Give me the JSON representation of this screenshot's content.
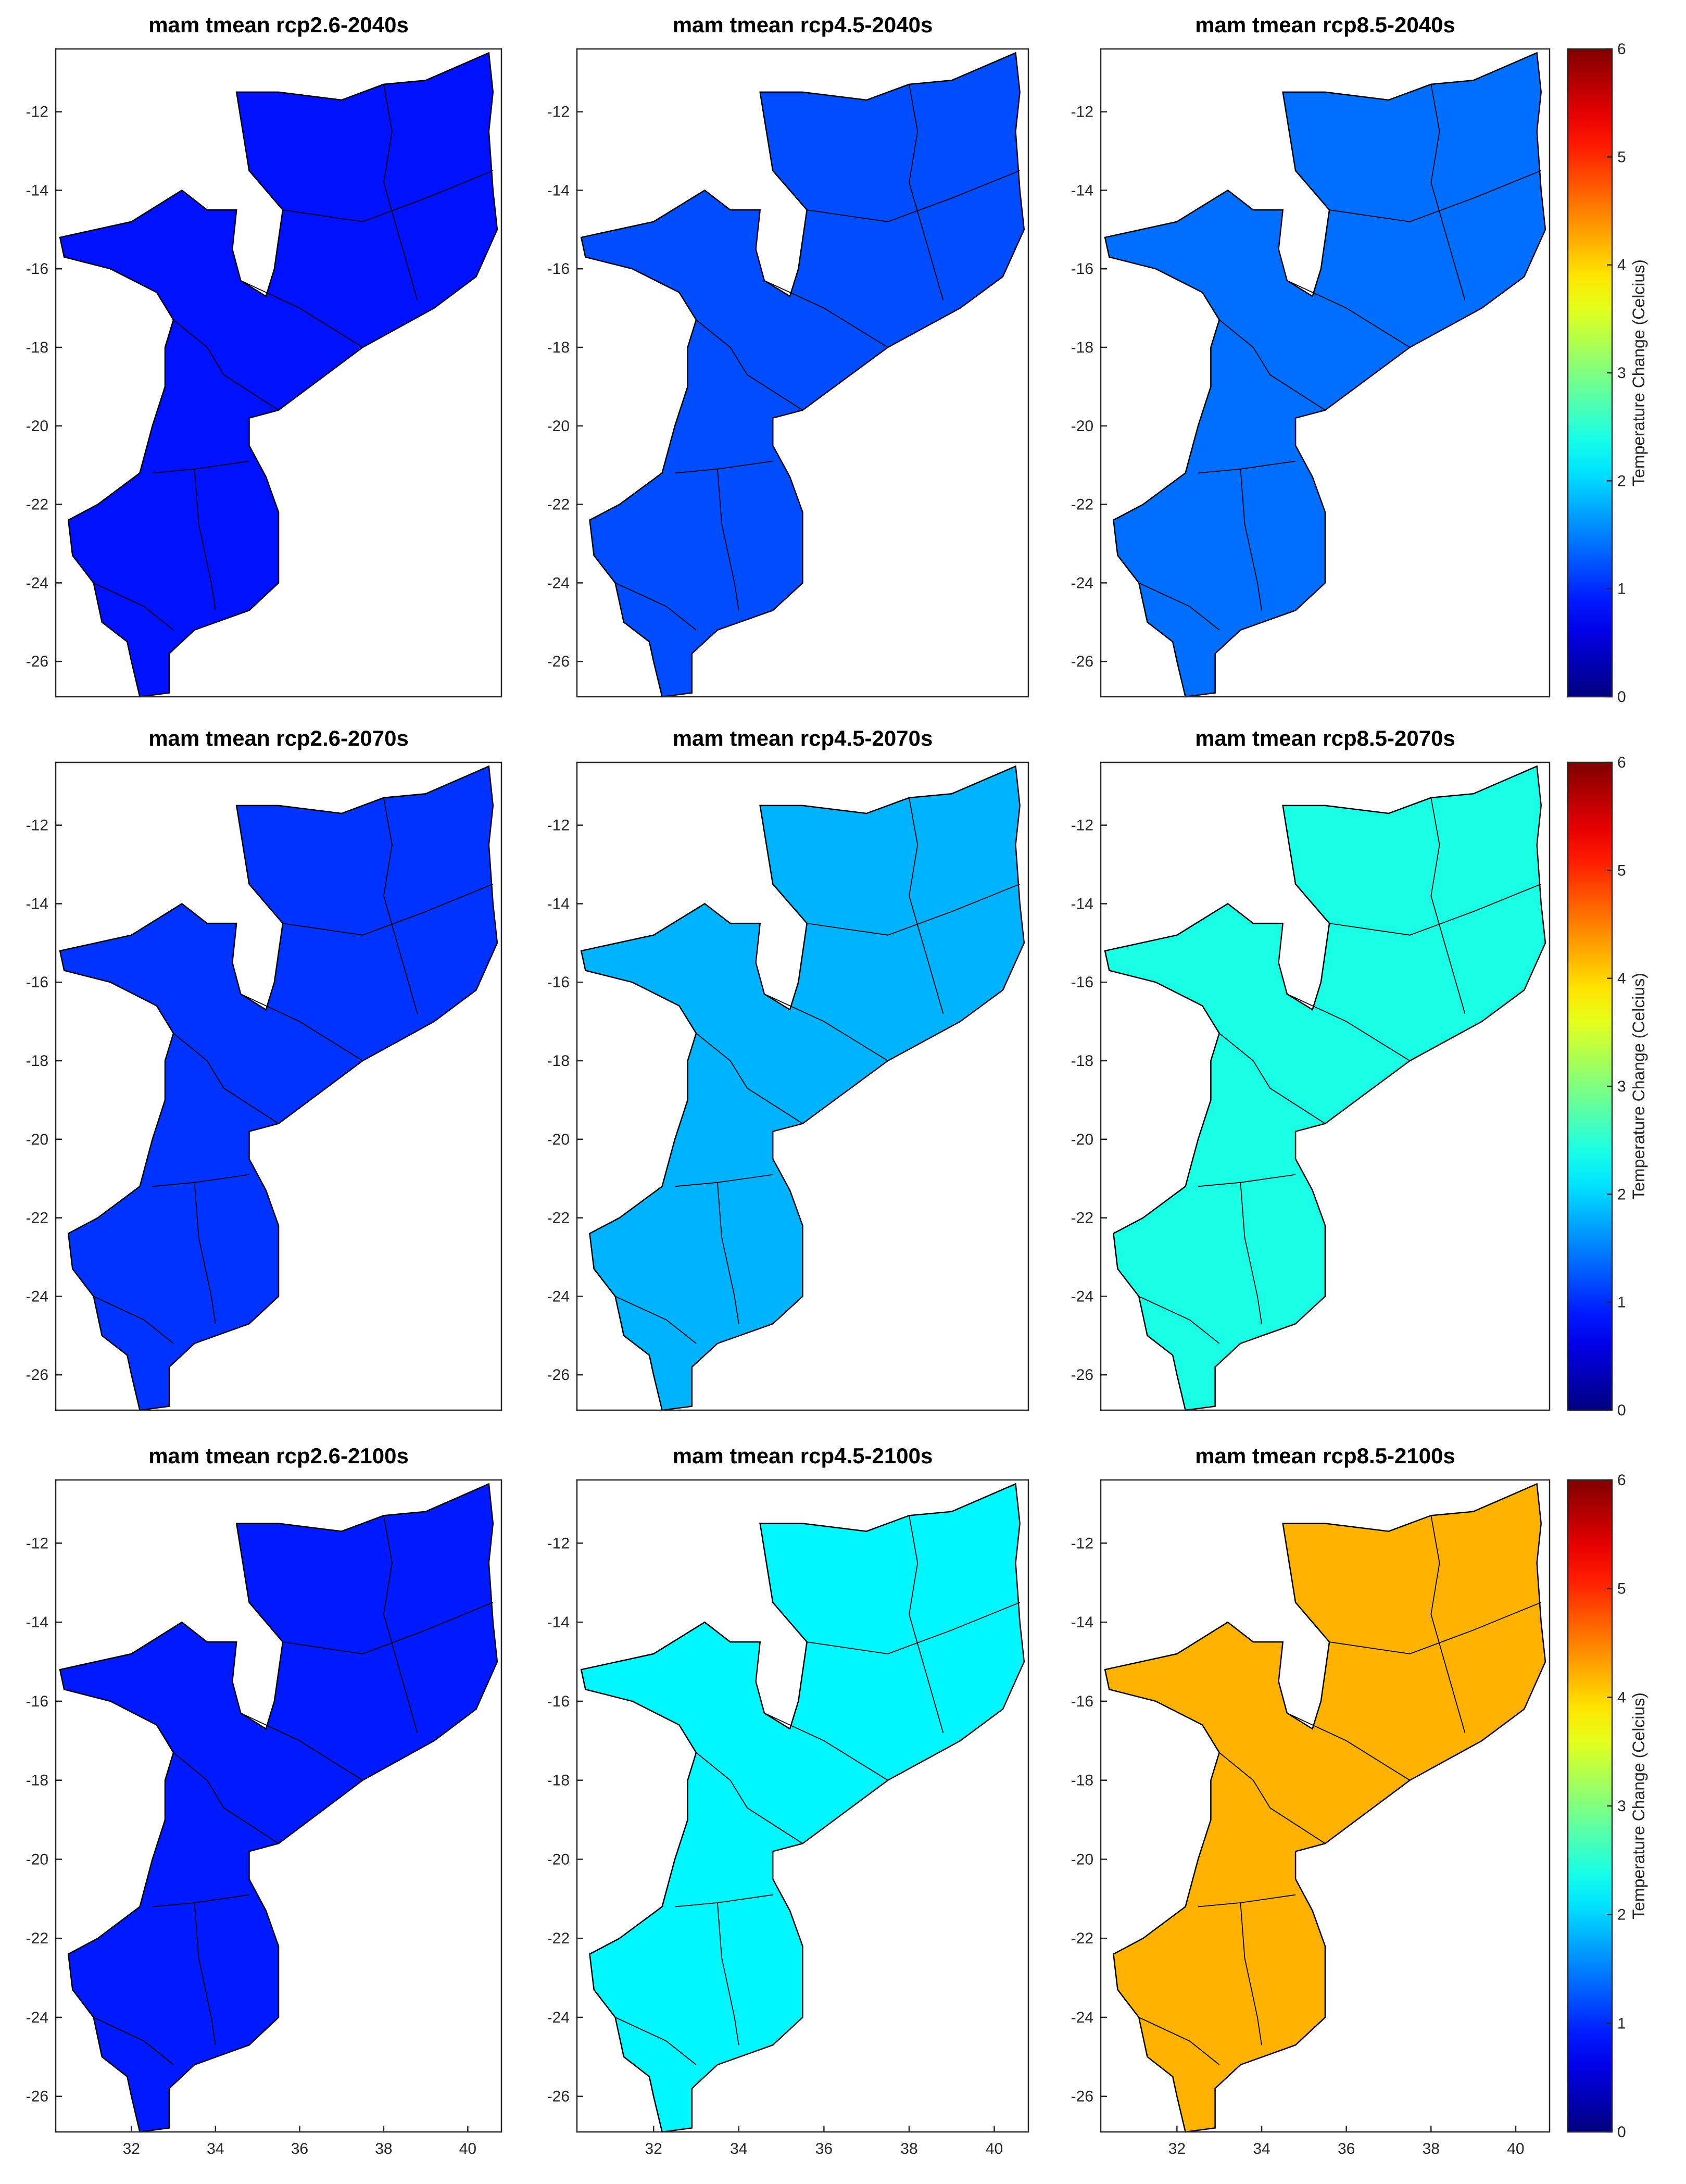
{
  "chart_data": [
    {
      "type": "map",
      "title": "mam tmean rcp2.6-2040s",
      "value": 0.85,
      "colormap": "jet",
      "xlim": [
        30.2,
        40.8
      ],
      "ylim": [
        -26.9,
        -10.4
      ],
      "yticks": [
        -12,
        -14,
        -16,
        -18,
        -20,
        -22,
        -24,
        -26
      ]
    },
    {
      "type": "map",
      "title": "mam tmean rcp4.5-2040s",
      "value": 1.2,
      "colormap": "jet",
      "xlim": [
        30.2,
        40.8
      ],
      "ylim": [
        -26.9,
        -10.4
      ],
      "yticks": [
        -12,
        -14,
        -16,
        -18,
        -20,
        -22,
        -24,
        -26
      ]
    },
    {
      "type": "map",
      "title": "mam tmean rcp8.5-2040s",
      "value": 1.4,
      "colormap": "jet",
      "xlim": [
        30.2,
        40.8
      ],
      "ylim": [
        -26.9,
        -10.4
      ],
      "yticks": [
        -12,
        -14,
        -16,
        -18,
        -20,
        -22,
        -24,
        -26
      ],
      "colorbar": {
        "label": "Temperature Change (Celcius)",
        "lim": [
          0,
          6
        ],
        "ticks": [
          0,
          1,
          2,
          3,
          4,
          5,
          6
        ]
      }
    },
    {
      "type": "map",
      "title": "mam tmean rcp2.6-2070s",
      "value": 1.05,
      "colormap": "jet",
      "xlim": [
        30.2,
        40.8
      ],
      "ylim": [
        -26.9,
        -10.4
      ],
      "yticks": [
        -12,
        -14,
        -16,
        -18,
        -20,
        -22,
        -24,
        -26
      ]
    },
    {
      "type": "map",
      "title": "mam tmean rcp4.5-2070s",
      "value": 1.8,
      "colormap": "jet",
      "xlim": [
        30.2,
        40.8
      ],
      "ylim": [
        -26.9,
        -10.4
      ],
      "yticks": [
        -12,
        -14,
        -16,
        -18,
        -20,
        -22,
        -24,
        -26
      ]
    },
    {
      "type": "map",
      "title": "mam tmean rcp8.5-2070s",
      "value": 2.4,
      "colormap": "jet",
      "xlim": [
        30.2,
        40.8
      ],
      "ylim": [
        -26.9,
        -10.4
      ],
      "yticks": [
        -12,
        -14,
        -16,
        -18,
        -20,
        -22,
        -24,
        -26
      ],
      "colorbar": {
        "label": "Temperature Change (Celcius)",
        "lim": [
          0,
          6
        ],
        "ticks": [
          0,
          1,
          2,
          3,
          4,
          5,
          6
        ]
      }
    },
    {
      "type": "map",
      "title": "mam tmean rcp2.6-2100s",
      "value": 0.9,
      "colormap": "jet",
      "xlim": [
        30.2,
        40.8
      ],
      "ylim": [
        -26.9,
        -10.4
      ],
      "yticks": [
        -12,
        -14,
        -16,
        -18,
        -20,
        -22,
        -24,
        -26
      ],
      "xticks": [
        32,
        34,
        36,
        38,
        40
      ]
    },
    {
      "type": "map",
      "title": "mam tmean rcp4.5-2100s",
      "value": 2.2,
      "colormap": "jet",
      "xlim": [
        30.2,
        40.8
      ],
      "ylim": [
        -26.9,
        -10.4
      ],
      "yticks": [
        -12,
        -14,
        -16,
        -18,
        -20,
        -22,
        -24,
        -26
      ],
      "xticks": [
        32,
        34,
        36,
        38,
        40
      ]
    },
    {
      "type": "map",
      "title": "mam tmean rcp8.5-2100s",
      "value": 4.2,
      "colormap": "jet",
      "xlim": [
        30.2,
        40.8
      ],
      "ylim": [
        -26.9,
        -10.4
      ],
      "yticks": [
        -12,
        -14,
        -16,
        -18,
        -20,
        -22,
        -24,
        -26
      ],
      "xticks": [
        32,
        34,
        36,
        38,
        40
      ],
      "colorbar": {
        "label": "Temperature Change (Celcius)",
        "lim": [
          0,
          6
        ],
        "ticks": [
          0,
          1,
          2,
          3,
          4,
          5,
          6
        ]
      }
    }
  ]
}
